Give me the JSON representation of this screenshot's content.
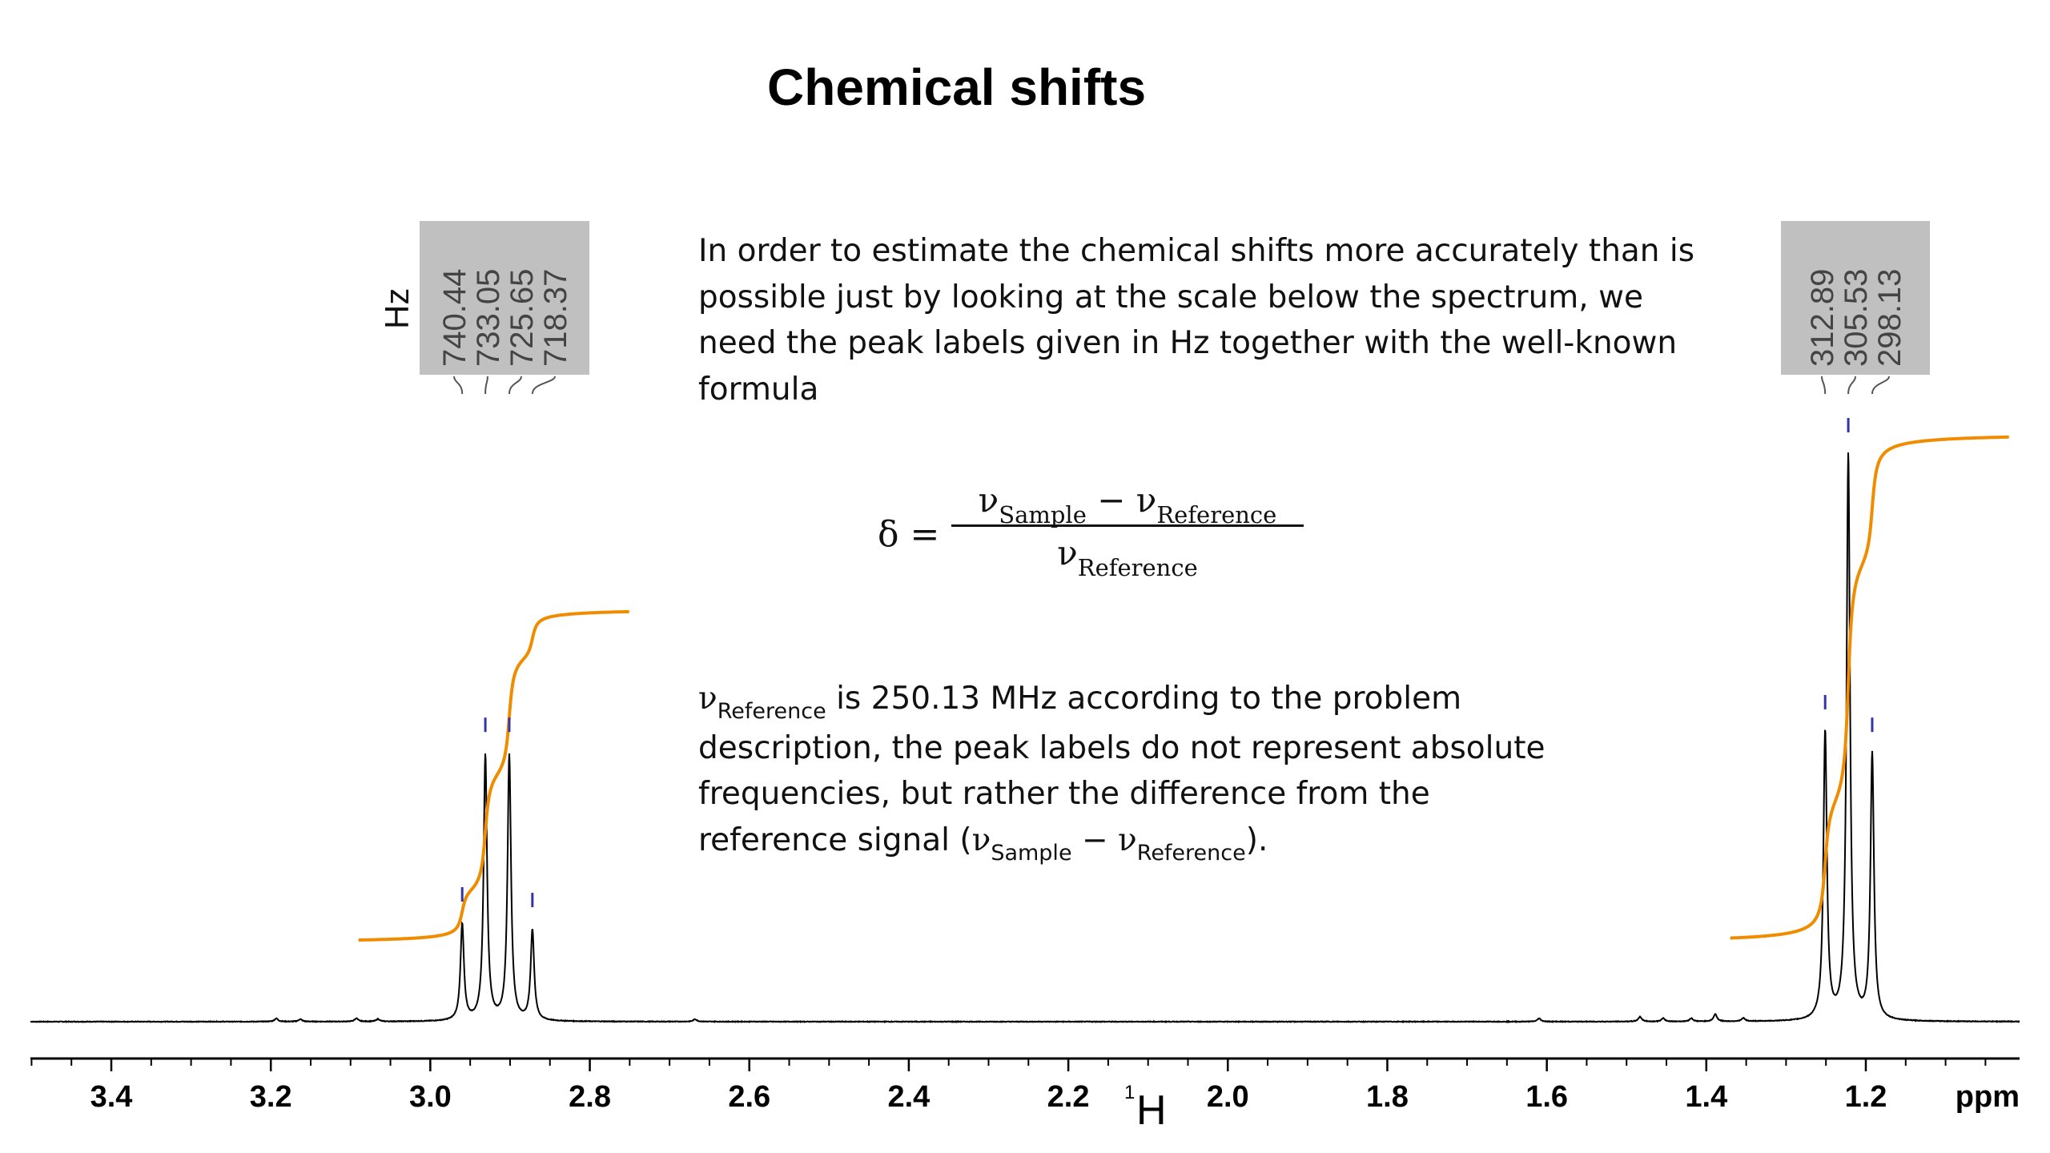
{
  "slide": {
    "title": "Chemical shifts",
    "paragraph1": [
      "In order to estimate the chemical shifts more accurately than is",
      "possible just by looking at the scale below the spectrum, we",
      "need the peak labels given in Hz together with the well-known",
      "formula"
    ],
    "formula": {
      "lhs": "δ =",
      "nu": "ν",
      "minus": "−",
      "sample": "Sample",
      "reference": "Reference"
    },
    "paragraph2": {
      "nu": "ν",
      "reference_sub": "Reference",
      "line1_rest": " is 250.13 MHz according to the problem",
      "line2": "description, the peak labels do not represent absolute",
      "line3": "frequencies, but rather the difference from the",
      "line4_start": "reference signal (",
      "sample_sub": "Sample",
      "minus": " − ",
      "line4_end": ")."
    }
  },
  "chart_data": {
    "type": "line",
    "nucleus": "1H",
    "x_axis_unit": "ppm",
    "x_reversed": true,
    "xlim": [
      3.5,
      1.02
    ],
    "x_ticks": [
      3.4,
      3.2,
      3.0,
      2.8,
      2.6,
      2.4,
      2.2,
      2.0,
      1.8,
      1.6,
      1.4,
      1.2
    ],
    "x_tick_labels": [
      "3.4",
      "3.2",
      "3.0",
      "2.8",
      "2.6",
      "2.4",
      "2.2",
      "2.0",
      "1.8",
      "1.6",
      "1.4",
      "1.2"
    ],
    "axis_label": {
      "superscript": "1",
      "main": "H"
    },
    "peak_label_unit": "Hz",
    "peak_groups": [
      {
        "name": "quartet",
        "labels": [
          "740.44",
          "733.05",
          "725.65",
          "718.37"
        ]
      },
      {
        "name": "triplet",
        "labels": [
          "312.89",
          "305.53",
          "298.13"
        ]
      }
    ],
    "peaks": [
      {
        "ppm": 2.96,
        "height": 0.17
      },
      {
        "ppm": 2.931,
        "height": 0.47
      },
      {
        "ppm": 2.901,
        "height": 0.47
      },
      {
        "ppm": 2.872,
        "height": 0.16
      },
      {
        "ppm": 1.251,
        "height": 0.51
      },
      {
        "ppm": 1.222,
        "height": 1.0
      },
      {
        "ppm": 1.192,
        "height": 0.47
      }
    ],
    "integral_curves": [
      {
        "x_start": 3.09,
        "x_end": 2.75,
        "y_start": 0.14,
        "y_end": 0.73
      },
      {
        "x_start": 1.37,
        "x_end": 1.02,
        "y_start": 0.14,
        "y_end": 1.04
      }
    ],
    "colors": {
      "spectrum": "#000000",
      "integral": "#f08c00",
      "peak_marker": "#3333aa",
      "label_box": "#c0c0c0"
    }
  }
}
